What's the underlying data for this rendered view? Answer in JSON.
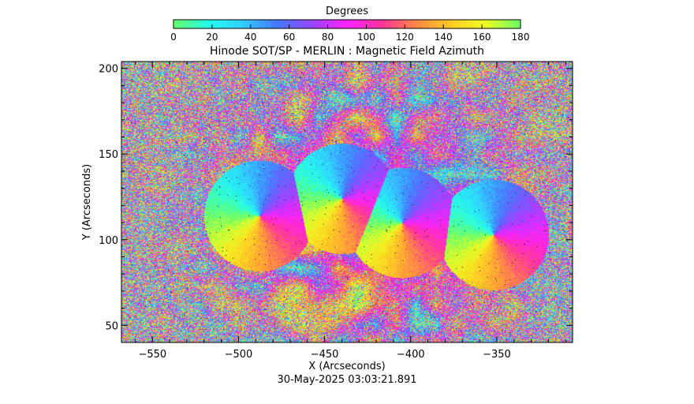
{
  "chart_data": {
    "type": "heatmap",
    "title": "Hinode SOT/SP - MERLIN : Magnetic Field Azimuth",
    "xlabel": "X (Arcseconds)",
    "ylabel": "Y (Arcseconds)",
    "xlim": [
      -568,
      -306
    ],
    "ylim": [
      40,
      204
    ],
    "x_ticks": [
      -550,
      -500,
      -450,
      -400,
      -350
    ],
    "y_ticks": [
      50,
      100,
      150,
      200
    ],
    "colorbar": {
      "title": "Degrees",
      "range": [
        0,
        180
      ],
      "ticks": [
        0,
        20,
        40,
        60,
        80,
        100,
        120,
        140,
        160,
        180
      ],
      "stops": [
        "#66ff66",
        "#22ffee",
        "#33ccff",
        "#4477ff",
        "#9944ff",
        "#ff22ff",
        "#ff3399",
        "#ff8844",
        "#ffcc22",
        "#eeff22",
        "#66ff66"
      ]
    },
    "timestamp": "30-May-2025 03:03:21.891",
    "features": [
      {
        "x": -488,
        "y": 114,
        "type": "pinwheel"
      },
      {
        "x": -440,
        "y": 124,
        "type": "pinwheel"
      },
      {
        "x": -405,
        "y": 110,
        "type": "pinwheel"
      },
      {
        "x": -352,
        "y": 103,
        "type": "pinwheel"
      }
    ]
  }
}
